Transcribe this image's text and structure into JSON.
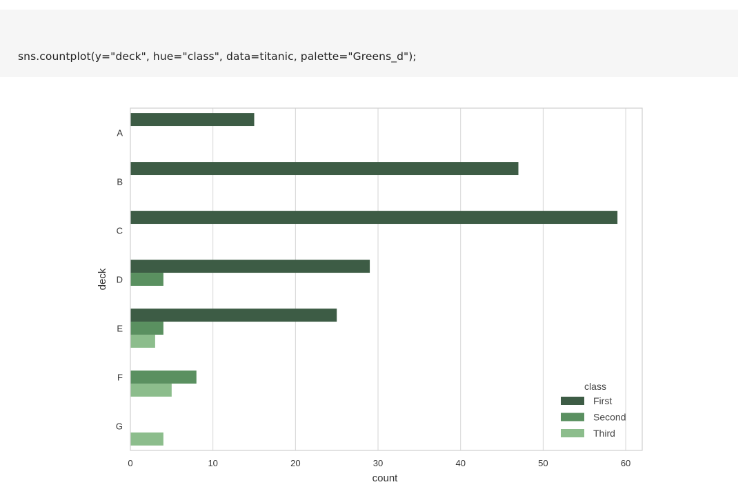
{
  "code_cell": {
    "code": "sns.countplot(y=\"deck\", hue=\"class\", data=titanic, palette=\"Greens_d\");"
  },
  "chart_data": {
    "type": "bar",
    "orientation": "horizontal",
    "categories": [
      "A",
      "B",
      "C",
      "D",
      "E",
      "F",
      "G"
    ],
    "series": [
      {
        "name": "First",
        "values": [
          15,
          47,
          59,
          29,
          25,
          0,
          0
        ],
        "color": "#3d5c45"
      },
      {
        "name": "Second",
        "values": [
          0,
          0,
          0,
          4,
          4,
          8,
          0
        ],
        "color": "#5a9060"
      },
      {
        "name": "Third",
        "values": [
          0,
          0,
          0,
          0,
          3,
          5,
          4
        ],
        "color": "#8cbd8c"
      }
    ],
    "xlabel": "count",
    "ylabel": "deck",
    "xlim": [
      0,
      62
    ],
    "xticks": [
      0,
      10,
      20,
      30,
      40,
      50,
      60
    ],
    "grid": true,
    "legend": {
      "title": "class",
      "position": "lower-right"
    }
  }
}
